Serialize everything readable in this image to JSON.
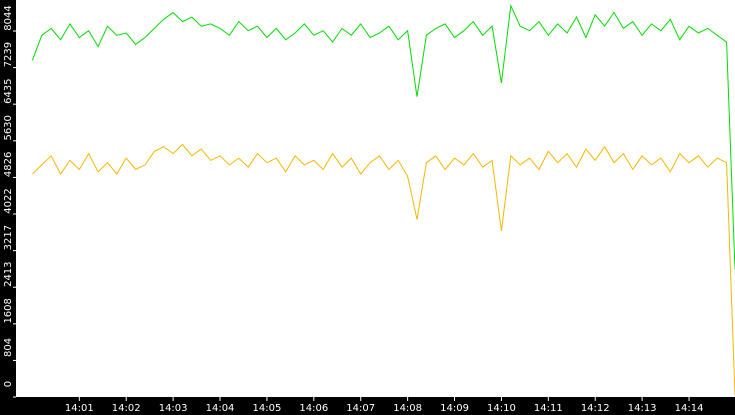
{
  "chart_data": {
    "type": "line",
    "x": [
      0.0,
      0.2,
      0.4,
      0.6,
      0.8,
      1.0,
      1.2,
      1.4,
      1.6,
      1.8,
      2.0,
      2.2,
      2.4,
      2.6,
      2.8,
      3.0,
      3.2,
      3.4,
      3.6,
      3.8,
      4.0,
      4.2,
      4.4,
      4.6,
      4.8,
      5.0,
      5.2,
      5.4,
      5.6,
      5.8,
      6.0,
      6.2,
      6.4,
      6.6,
      6.8,
      7.0,
      7.2,
      7.4,
      7.6,
      7.8,
      8.0,
      8.2,
      8.4,
      8.6,
      8.8,
      9.0,
      9.2,
      9.4,
      9.6,
      9.8,
      10.0,
      10.2,
      10.4,
      10.6,
      10.8,
      11.0,
      11.2,
      11.4,
      11.6,
      11.8,
      12.0,
      12.2,
      12.4,
      12.6,
      12.8,
      13.0,
      13.2,
      13.4,
      13.6,
      13.8,
      14.0,
      14.2,
      14.4,
      14.6,
      14.8,
      14.98
    ],
    "series": [
      {
        "color": "#00dd00",
        "values": [
          7400,
          7950,
          8100,
          7850,
          8200,
          7900,
          8050,
          7700,
          8150,
          7950,
          8000,
          7750,
          7900,
          8100,
          8300,
          8450,
          8250,
          8350,
          8150,
          8200,
          8100,
          7950,
          8250,
          8050,
          8150,
          7900,
          8100,
          7850,
          8000,
          8200,
          7950,
          8050,
          7800,
          8100,
          7950,
          8200,
          7900,
          8000,
          8150,
          7850,
          8050,
          6600,
          7950,
          8100,
          8200,
          7900,
          8050,
          8250,
          7950,
          8150,
          6900,
          8600,
          8150,
          8050,
          8250,
          7950,
          8200,
          8000,
          8350,
          7900,
          8400,
          8150,
          8450,
          8100,
          8250,
          7950,
          8200,
          8050,
          8300,
          7850,
          8150,
          8000,
          8100,
          7950,
          7800,
          2800
        ]
      },
      {
        "color": "#f5b800",
        "values": [
          4900,
          5100,
          5300,
          4900,
          5200,
          5000,
          5350,
          4950,
          5150,
          4900,
          5250,
          5000,
          5100,
          5400,
          5500,
          5350,
          5550,
          5300,
          5450,
          5200,
          5300,
          5100,
          5250,
          5050,
          5350,
          5150,
          5250,
          4950,
          5300,
          5100,
          5200,
          5000,
          5350,
          5050,
          5250,
          4900,
          5150,
          5300,
          5000,
          5200,
          4850,
          3900,
          5150,
          5300,
          5000,
          5250,
          5100,
          5350,
          5050,
          5200,
          3650,
          5300,
          5100,
          5250,
          5000,
          5400,
          5150,
          5350,
          5050,
          5450,
          5200,
          5500,
          5150,
          5350,
          5000,
          5300,
          5100,
          5250,
          4950,
          5350,
          5150,
          5300,
          5050,
          5250,
          5150,
          40
        ]
      }
    ],
    "xlim": [
      -0.35,
      14.98
    ],
    "xticks": [
      {
        "value": 1,
        "label": "14:01"
      },
      {
        "value": 2,
        "label": "14:02"
      },
      {
        "value": 3,
        "label": "14:03"
      },
      {
        "value": 4,
        "label": "14:04"
      },
      {
        "value": 5,
        "label": "14:05"
      },
      {
        "value": 6,
        "label": "14:06"
      },
      {
        "value": 7,
        "label": "14:07"
      },
      {
        "value": 8,
        "label": "14:08"
      },
      {
        "value": 9,
        "label": "14:09"
      },
      {
        "value": 10,
        "label": "14:10"
      },
      {
        "value": 11,
        "label": "14:11"
      },
      {
        "value": 12,
        "label": "14:12"
      },
      {
        "value": 13,
        "label": "14:13"
      },
      {
        "value": 14,
        "label": "14:14"
      }
    ],
    "ylim": [
      0,
      8725
    ],
    "yticks": [
      0,
      804,
      1608,
      2413,
      3217,
      4022,
      4826,
      5630,
      6435,
      7239,
      8044
    ],
    "grid": false
  }
}
